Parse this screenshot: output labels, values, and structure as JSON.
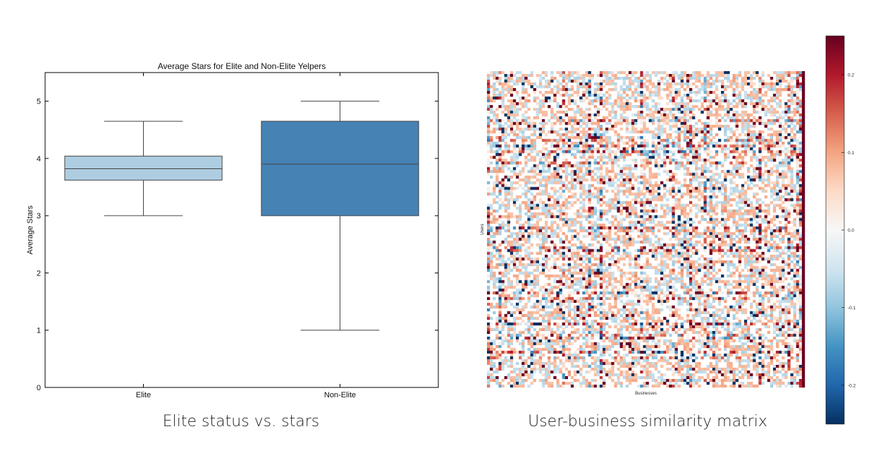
{
  "captions": {
    "left": "Elite status vs. stars",
    "right": "User-business similarity matrix"
  },
  "chart_data": [
    {
      "type": "box",
      "title": "Average Stars for Elite and Non-Elite Yelpers",
      "xlabel": "",
      "ylabel": "Average Stars",
      "ylim": [
        0,
        5.5
      ],
      "yticks": [
        0,
        1,
        2,
        3,
        4,
        5
      ],
      "categories": [
        "Elite",
        "Non-Elite"
      ],
      "boxes": [
        {
          "category": "Elite",
          "whisker_low": 3.0,
          "q1": 3.62,
          "median": 3.82,
          "q3": 4.04,
          "whisker_high": 4.65,
          "color": "#aecde1"
        },
        {
          "category": "Non-Elite",
          "whisker_low": 1.0,
          "q1": 3.0,
          "median": 3.9,
          "q3": 4.65,
          "whisker_high": 5.0,
          "color": "#4682b4"
        }
      ],
      "grid": false
    },
    {
      "type": "heatmap",
      "title": "",
      "xlabel": "Businesses",
      "ylabel": "Users",
      "colorbar": {
        "ticks": [
          -0.2,
          -0.1,
          0.0,
          0.1,
          0.2
        ],
        "tick_labels": [
          "-0.2",
          "-0.1",
          "0.0",
          "0.1",
          "0.2"
        ],
        "vmin": -0.25,
        "vmax": 0.25,
        "colormap": "RdBu_r",
        "colors": [
          "#053061",
          "#2166ac",
          "#4393c3",
          "#92c5de",
          "#d1e5f0",
          "#f7f7f7",
          "#fddbc7",
          "#f4a582",
          "#d6604d",
          "#b2182b",
          "#67001f"
        ]
      }
    }
  ]
}
